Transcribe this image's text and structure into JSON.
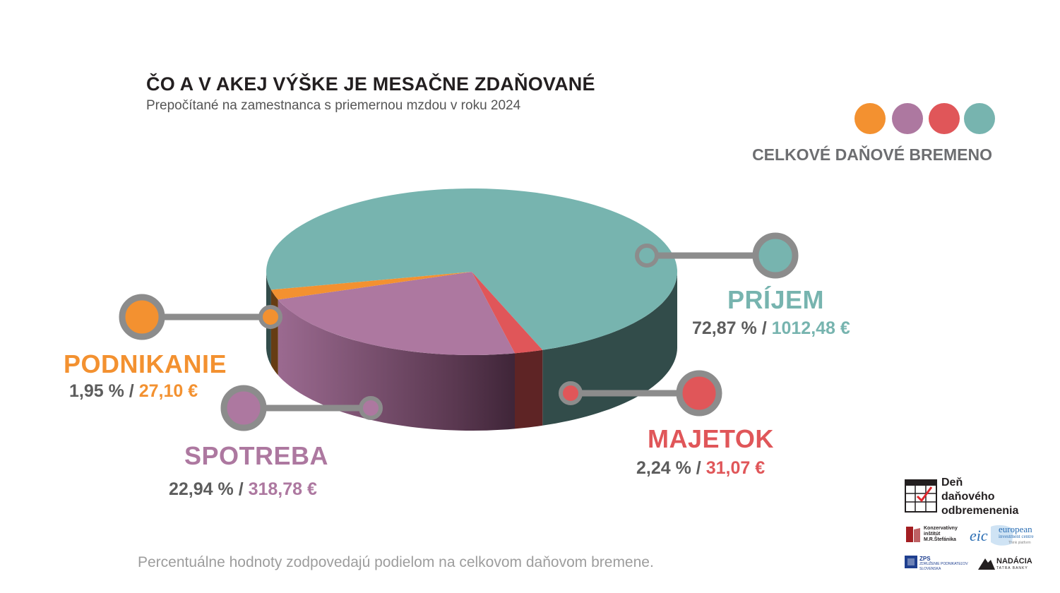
{
  "title": "ČO A V AKEJ VÝŠKE JE MESAČNE ZDAŇOVANÉ",
  "subtitle": "Prepočítané na zamestnanca s priemernou mzdou v roku 2024",
  "legend": {
    "label": "CELKOVÉ DAŇOVÉ BREMENO",
    "dots": [
      "#f39130",
      "#ad78a0",
      "#e05659",
      "#77b4af"
    ]
  },
  "chart_data": {
    "type": "pie",
    "title": "ČO A V AKEJ VÝŠKE JE MESAČNE ZDAŇOVANÉ",
    "subtitle": "Prepočítané na zamestnanca s priemernou mzdou v roku 2024",
    "slices": [
      {
        "name": "PRÍJEM",
        "percent": 72.87,
        "amount_label": "1012,48 €",
        "value_label": "72,87 %",
        "color": "#77b4af"
      },
      {
        "name": "PODNIKANIE",
        "percent": 1.95,
        "amount_label": "27,10 €",
        "value_label": "1,95 %",
        "color": "#f39130"
      },
      {
        "name": "SPOTREBA",
        "percent": 22.94,
        "amount_label": "318,78 €",
        "value_label": "22,94 %",
        "color": "#ad78a0"
      },
      {
        "name": "MAJETOK",
        "percent": 2.24,
        "amount_label": "31,07 €",
        "value_label": "2,24 %",
        "color": "#e05659"
      }
    ]
  },
  "labels": {
    "prijem": {
      "name": "PRÍJEM",
      "percent": "72,87 %",
      "sep": " / ",
      "amount": "1012,48 €"
    },
    "podnikanie": {
      "name": "PODNIKANIE",
      "percent": "1,95 %",
      "sep": " / ",
      "amount": "27,10 €"
    },
    "spotreba": {
      "name": "SPOTREBA",
      "percent": "22,94 %",
      "sep": " / ",
      "amount": "318,78 €"
    },
    "majetok": {
      "name": "MAJETOK",
      "percent": "2,24 %",
      "sep": " / ",
      "amount": "31,07 €"
    }
  },
  "footnote": "Percentuálne hodnoty zodpovedajú podielom na celkovom daňovom bremene.",
  "logos": {
    "den_line1": "Deň",
    "den_line2": "daňového",
    "den_line3": "odbremenenia",
    "kimrs_line1": "Konzervatívny",
    "kimrs_line2": "inštitút",
    "kimrs_line3": "M.R.Štefánika",
    "eic_mark": "eic",
    "eic_line1": "european",
    "eic_line2": "investment centre",
    "eic_line3": "Think platform",
    "zps_mark": "ZPS",
    "zps_line1": "ZDRUŽENIE PODNIKATEĽOV",
    "zps_line2": "SLOVENSKA",
    "nadacia_line1": "NADÁCIA",
    "nadacia_line2": "TATRA BANKY"
  }
}
